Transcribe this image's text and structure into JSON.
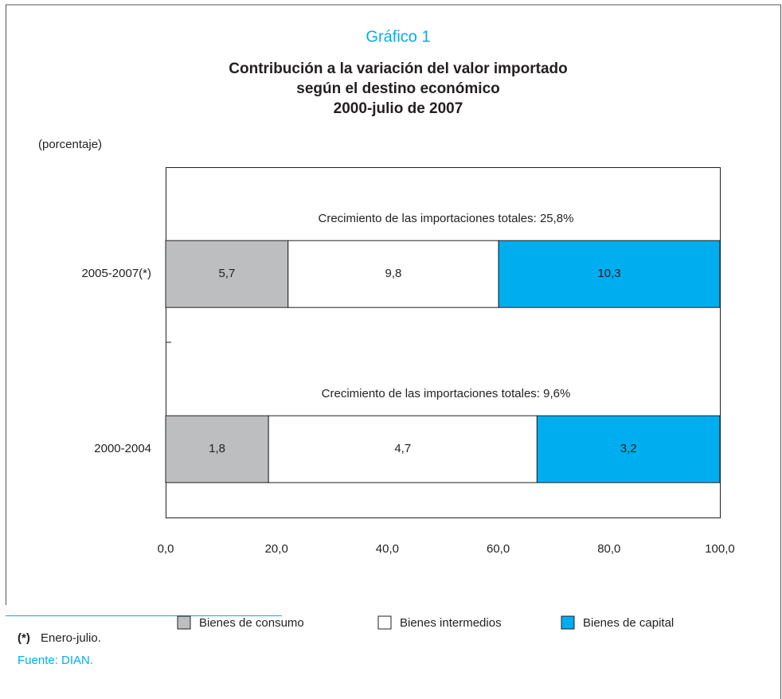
{
  "chart_data": {
    "type": "stacked_bar_100",
    "orientation": "horizontal",
    "title": "Gráfico 1",
    "subtitle": [
      "Contribución a la variación del valor importado",
      "según el destino económico",
      "2000-julio de 2007"
    ],
    "unit_label": "(porcentaje)",
    "categories": [
      "2005-2007(*)",
      "2000-2004"
    ],
    "annotations": [
      "Crecimiento de las importaciones totales:  25,8%",
      "Crecimiento de las importaciones totales: 9,6%"
    ],
    "series": [
      {
        "name": "Bienes de consumo",
        "color": "#bcbec0",
        "values": [
          5.7,
          1.8
        ],
        "value_labels": [
          "5,7",
          "1,8"
        ]
      },
      {
        "name": "Bienes intermedios",
        "color": "#ffffff",
        "values": [
          9.8,
          4.7
        ],
        "value_labels": [
          "9,8",
          "4,7"
        ]
      },
      {
        "name": "Bienes de capital",
        "color": "#00aeef",
        "values": [
          10.3,
          3.2
        ],
        "value_labels": [
          "10,3",
          "3,2"
        ]
      }
    ],
    "xlim": [
      0,
      100
    ],
    "xticks": [
      {
        "value": 0,
        "label": "0,0"
      },
      {
        "value": 20,
        "label": "20,0"
      },
      {
        "value": 40,
        "label": "40,0"
      },
      {
        "value": 60,
        "label": "60,0"
      },
      {
        "value": 80,
        "label": "80,0"
      },
      {
        "value": 100,
        "label": "100,0"
      }
    ],
    "legend": "bottom",
    "footnote_marker": "(*)",
    "footnote": "Enero-julio.",
    "source": "Fuente: DIAN."
  }
}
